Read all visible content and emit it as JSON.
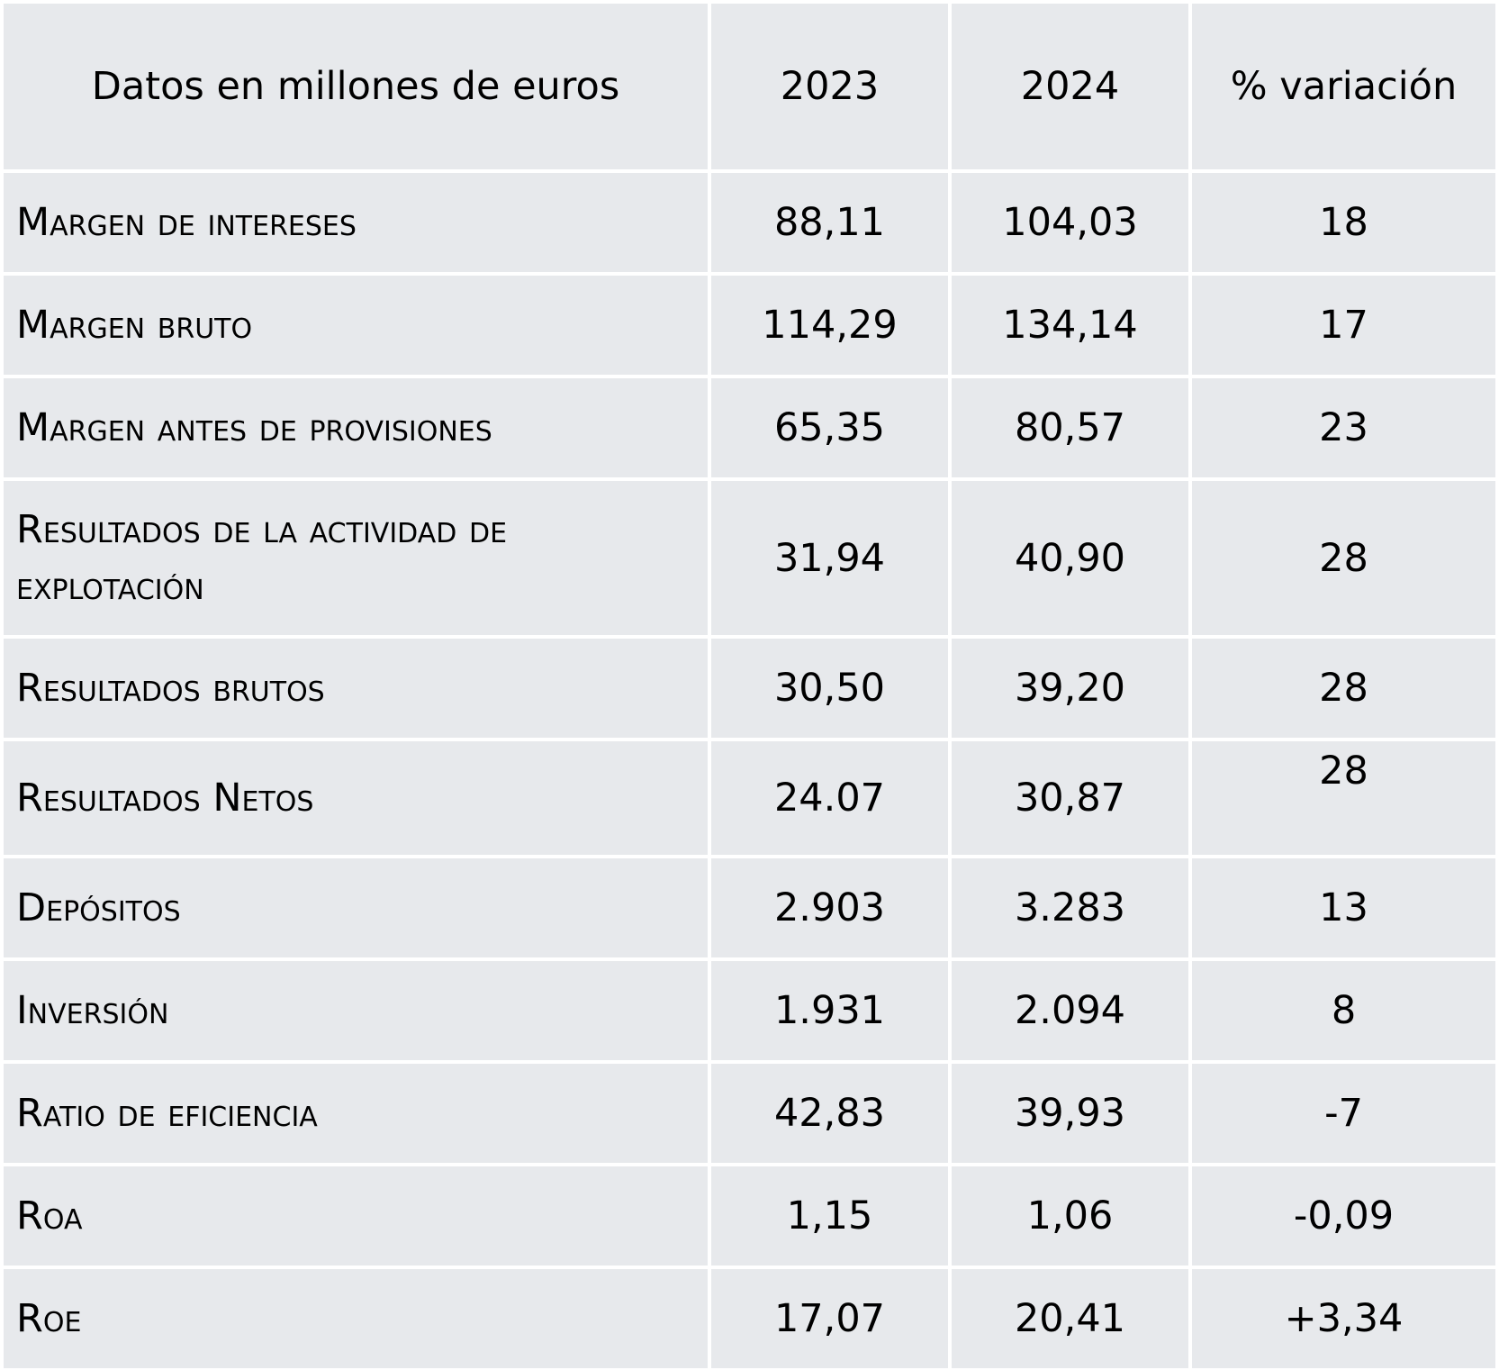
{
  "table": {
    "headers": [
      "Datos en millones de euros",
      "2023",
      "2024",
      "% variación"
    ],
    "rows": [
      {
        "label": "Margen de intereses",
        "y2023": "88,11",
        "y2024": "104,03",
        "variation": "18"
      },
      {
        "label": "Margen bruto",
        "y2023": "114,29",
        "y2024": "134,14",
        "variation": "17"
      },
      {
        "label": "Margen antes de provisiones",
        "y2023": "65,35",
        "y2024": "80,57",
        "variation": "23"
      },
      {
        "label": "Resultados de la actividad de explotación",
        "y2023": "31,94",
        "y2024": "40,90",
        "variation": "28"
      },
      {
        "label": "Resultados brutos",
        "y2023": "30,50",
        "y2024": "39,20",
        "variation": "28"
      },
      {
        "label": "Resultados Netos",
        "y2023": "24.07",
        "y2024": "30,87",
        "variation": "28"
      },
      {
        "label": "Depósitos",
        "y2023": "2.903",
        "y2024": "3.283",
        "variation": "13"
      },
      {
        "label": "Inversión",
        "y2023": "1.931",
        "y2024": "2.094",
        "variation": "8"
      },
      {
        "label": "Ratio de eficiencia",
        "y2023": "42,83",
        "y2024": "39,93",
        "variation": "-7"
      },
      {
        "label": "Roa",
        "y2023": "1,15",
        "y2024": "1,06",
        "variation": "-0,09"
      },
      {
        "label": "Roe",
        "y2023": "17,07",
        "y2024": "20,41",
        "variation": "+3,34"
      }
    ]
  },
  "colors": {
    "cell_background": "#e7e9ec",
    "grid_lines": "#ffffff",
    "text": "#000000"
  }
}
